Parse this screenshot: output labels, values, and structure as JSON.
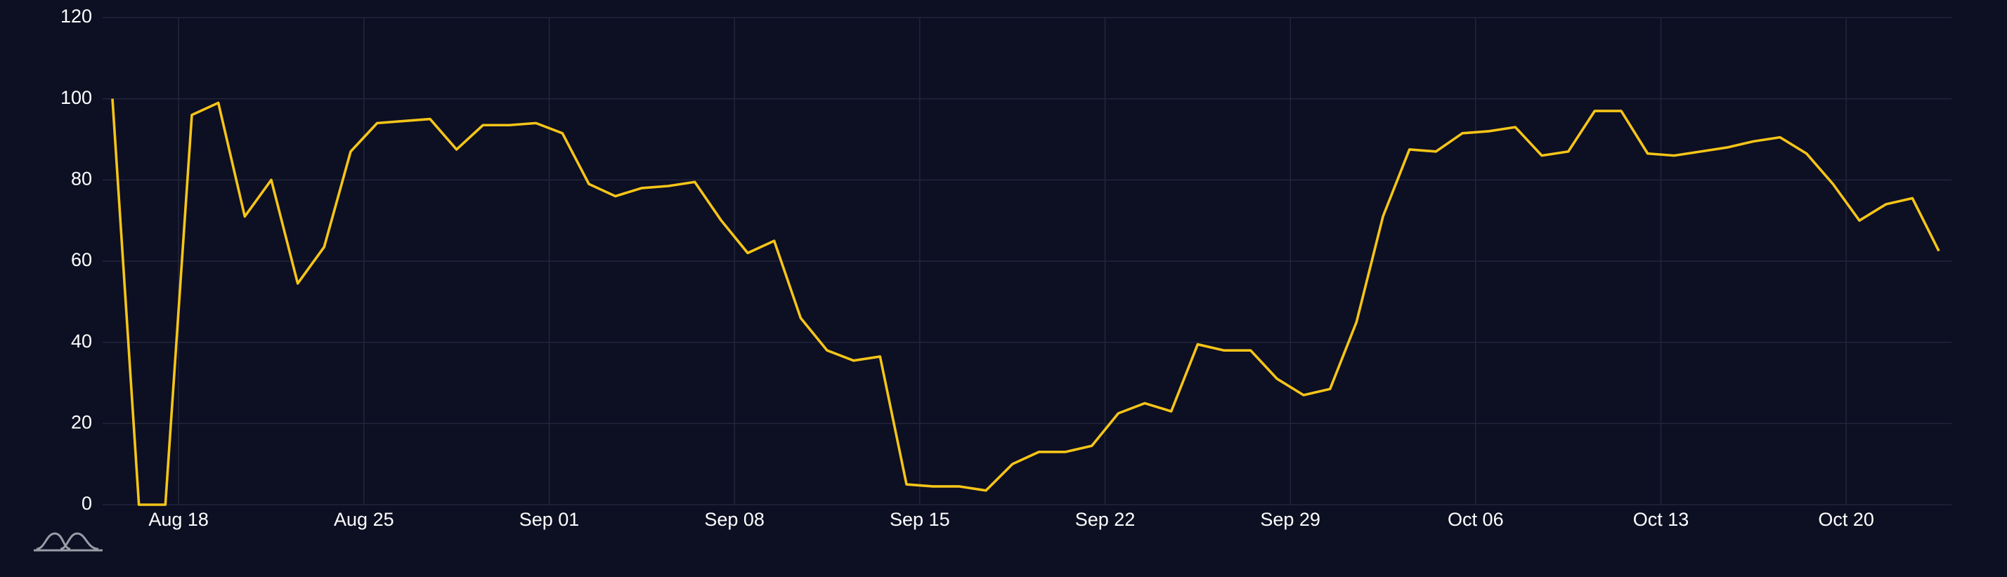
{
  "chart_data": {
    "type": "line",
    "x": [
      "Aug 15",
      "Aug 16",
      "Aug 17",
      "Aug 18",
      "Aug 19",
      "Aug 20",
      "Aug 21",
      "Aug 22",
      "Aug 23",
      "Aug 24",
      "Aug 25",
      "Aug 26",
      "Aug 27",
      "Aug 28",
      "Aug 29",
      "Aug 30",
      "Aug 31",
      "Sep 01",
      "Sep 02",
      "Sep 03",
      "Sep 04",
      "Sep 05",
      "Sep 06",
      "Sep 07",
      "Sep 08",
      "Sep 09",
      "Sep 10",
      "Sep 11",
      "Sep 12",
      "Sep 13",
      "Sep 14",
      "Sep 15",
      "Sep 16",
      "Sep 17",
      "Sep 18",
      "Sep 19",
      "Sep 20",
      "Sep 21",
      "Sep 22",
      "Sep 23",
      "Sep 24",
      "Sep 25",
      "Sep 26",
      "Sep 27",
      "Sep 28",
      "Sep 29",
      "Sep 30",
      "Oct 01",
      "Oct 02",
      "Oct 03",
      "Oct 04",
      "Oct 05",
      "Oct 06",
      "Oct 07",
      "Oct 08",
      "Oct 09",
      "Oct 10",
      "Oct 11",
      "Oct 12",
      "Oct 13",
      "Oct 14",
      "Oct 15",
      "Oct 16",
      "Oct 17",
      "Oct 18",
      "Oct 19",
      "Oct 20",
      "Oct 21",
      "Oct 22",
      "Oct 23"
    ],
    "series": [
      {
        "color": "#f5c518",
        "values": [
          100,
          0,
          0,
          96,
          99,
          71,
          80,
          54.5,
          63.5,
          87,
          94,
          94.5,
          95,
          87.5,
          93.5,
          93.5,
          94,
          91.5,
          79,
          76,
          78,
          78.5,
          79.5,
          70,
          62,
          65,
          46,
          38,
          35.5,
          36.5,
          5,
          4.5,
          4.5,
          3.5,
          10,
          13,
          13,
          14.5,
          22.5,
          25,
          23,
          39.5,
          38,
          38,
          31,
          27,
          28.5,
          45,
          71,
          87.5,
          87,
          91.5,
          92,
          93,
          86,
          87,
          97,
          97,
          86.5,
          86,
          87,
          88,
          89.5,
          90.5,
          86.5,
          79,
          70,
          74,
          75.5,
          62.5
        ]
      }
    ],
    "xticks": [
      "Aug 18",
      "Aug 25",
      "Sep 01",
      "Sep 08",
      "Sep 15",
      "Sep 22",
      "Sep 29",
      "Oct 06",
      "Oct 13",
      "Oct 20"
    ],
    "ylim": [
      0,
      120
    ],
    "yticks": [
      0,
      20,
      40,
      60,
      80,
      100,
      120
    ],
    "grid": true
  }
}
